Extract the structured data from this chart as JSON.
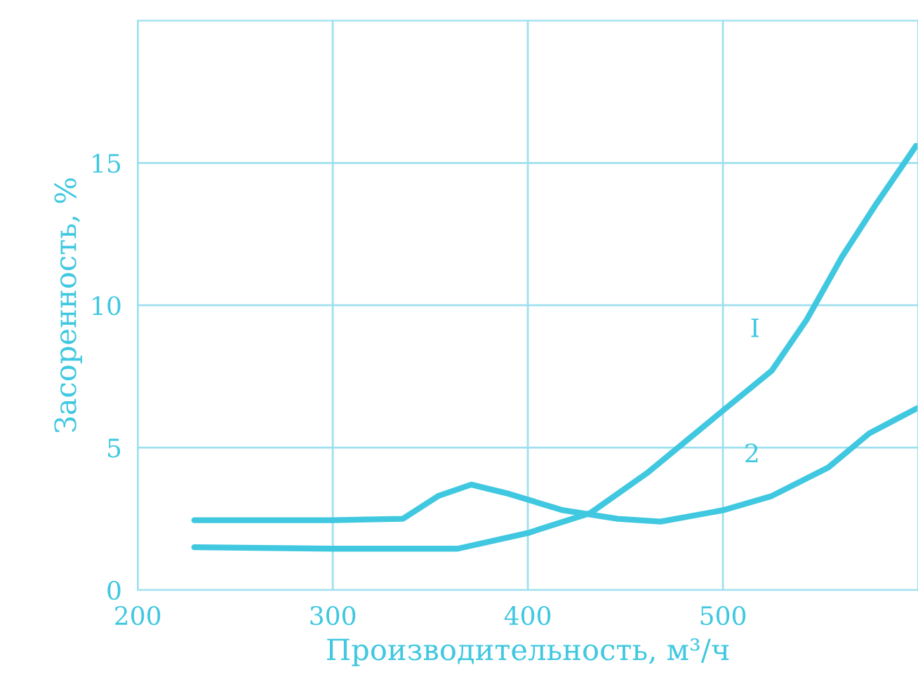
{
  "chart_data": {
    "type": "line",
    "xlabel": "Производительность, м³/ч",
    "ylabel": "Засоренность, %",
    "xlim": [
      200,
      600
    ],
    "ylim": [
      0,
      20
    ],
    "xticks": [
      200,
      300,
      400,
      500
    ],
    "yticks": [
      0,
      5,
      10,
      15
    ],
    "grid": true,
    "marker": "none",
    "line_style": "solid",
    "series": [
      {
        "name": "I",
        "color": "#40c8e0",
        "x": [
          229,
          300,
          364,
          400,
          432,
          461,
          500,
          525,
          543,
          561,
          579,
          599
        ],
        "values": [
          1.5,
          1.45,
          1.45,
          2.0,
          2.7,
          4.1,
          6.3,
          7.7,
          9.5,
          11.7,
          13.6,
          15.6
        ]
      },
      {
        "name": "2",
        "color": "#40c8e0",
        "x": [
          229,
          300,
          336,
          354,
          371,
          389,
          418,
          446,
          468,
          500,
          525,
          554,
          575,
          600
        ],
        "values": [
          2.45,
          2.45,
          2.5,
          3.3,
          3.7,
          3.4,
          2.8,
          2.5,
          2.4,
          2.8,
          3.3,
          4.3,
          5.5,
          6.4
        ]
      }
    ]
  }
}
